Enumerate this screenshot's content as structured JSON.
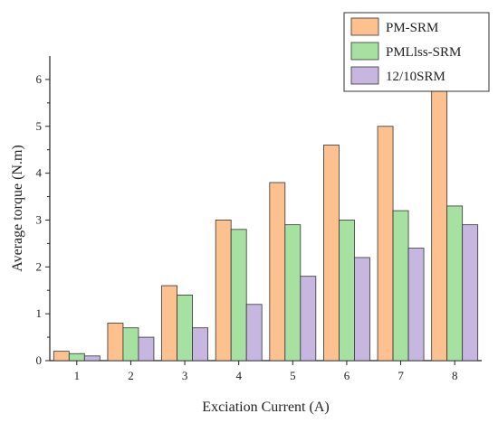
{
  "chart_data": {
    "type": "bar",
    "title": "",
    "xlabel": "Exciation Current (A)",
    "ylabel": "Average torque (N.m)",
    "categories": [
      "1",
      "2",
      "3",
      "4",
      "5",
      "6",
      "7",
      "8"
    ],
    "ylim": [
      0,
      6.5
    ],
    "yticks": [
      0,
      1,
      2,
      3,
      4,
      5,
      6
    ],
    "grid": false,
    "legend_position": "top-right",
    "series": [
      {
        "name": "PM-SRM",
        "color": "#fdc08f",
        "values": [
          0.2,
          0.8,
          1.6,
          3.0,
          3.8,
          4.6,
          5.0,
          5.8
        ]
      },
      {
        "name": "PMLlss-SRM",
        "color": "#a7e1a2",
        "values": [
          0.15,
          0.7,
          1.4,
          2.8,
          2.9,
          3.0,
          3.2,
          3.3
        ]
      },
      {
        "name": "12/10SRM",
        "color": "#c7b7e0",
        "values": [
          0.1,
          0.5,
          0.7,
          1.2,
          1.8,
          2.2,
          2.4,
          2.9
        ]
      }
    ]
  }
}
